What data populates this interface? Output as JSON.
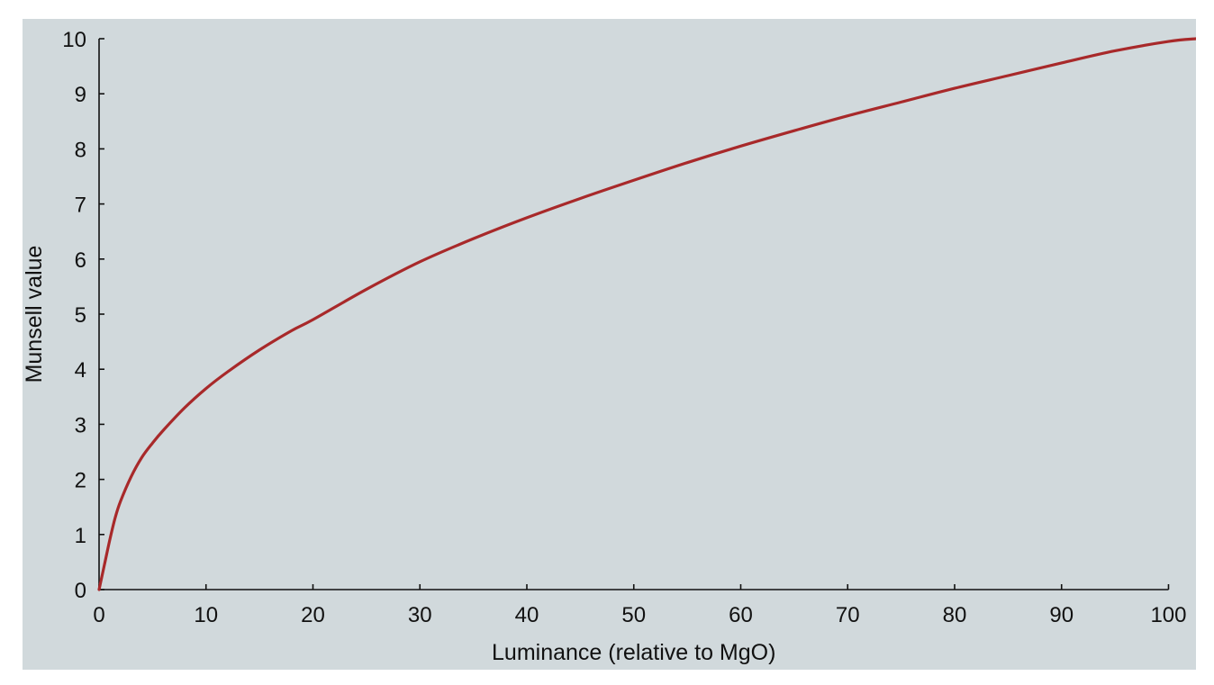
{
  "chart_data": {
    "type": "line",
    "title": "",
    "xlabel": "Luminance (relative to MgO)",
    "ylabel": "Munsell value",
    "xlim": [
      0,
      102.57
    ],
    "ylim": [
      0,
      10
    ],
    "x_ticks": [
      "0",
      "10",
      "20",
      "30",
      "40",
      "50",
      "60",
      "70",
      "80",
      "90",
      "100"
    ],
    "y_ticks": [
      "0",
      "1",
      "2",
      "3",
      "4",
      "5",
      "6",
      "7",
      "8",
      "9",
      "10"
    ],
    "grid": false,
    "legend": "none",
    "series": [
      {
        "color": "#a8292a",
        "x": [
          0,
          0.5,
          1,
          1.5,
          2,
          3,
          4,
          5,
          6,
          8,
          10,
          12,
          15,
          18,
          20,
          25,
          30,
          35,
          40,
          45,
          50,
          55,
          60,
          65,
          70,
          75,
          80,
          85,
          90,
          95,
          100,
          102.57
        ],
        "y": [
          0,
          0.45,
          0.9,
          1.3,
          1.6,
          2.05,
          2.4,
          2.66,
          2.89,
          3.3,
          3.65,
          3.95,
          4.35,
          4.7,
          4.9,
          5.45,
          5.95,
          6.37,
          6.75,
          7.1,
          7.43,
          7.75,
          8.05,
          8.33,
          8.6,
          8.85,
          9.1,
          9.33,
          9.56,
          9.78,
          9.95,
          10
        ]
      }
    ],
    "colors": {
      "background": "#d1d9dc",
      "line": "#a8292a",
      "axis": "#111111"
    }
  }
}
